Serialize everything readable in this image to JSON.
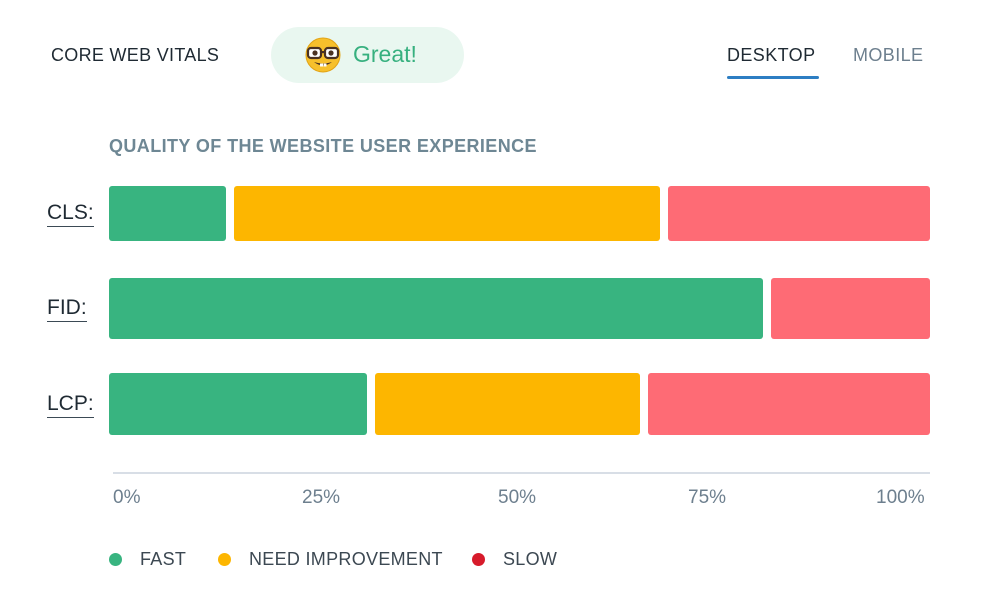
{
  "header": {
    "title": "CORE WEB VITALS",
    "badge": {
      "label": "Great!",
      "icon": "nerd-face-emoji"
    },
    "tabs": [
      {
        "label": "DESKTOP",
        "active": true
      },
      {
        "label": "MOBILE",
        "active": false
      }
    ]
  },
  "colors": {
    "fast": "#38b480",
    "need_improvement": "#fdb600",
    "slow": "#fe6b75",
    "slow_legend": "#d71b2b",
    "accent": "#2d7ec3"
  },
  "chart_data": {
    "type": "bar",
    "orientation": "horizontal",
    "stacked": true,
    "title": "QUALITY OF THE WEBSITE USER EXPERIENCE",
    "categories": [
      "CLS:",
      "FID:",
      "LCP:"
    ],
    "series": [
      {
        "name": "FAST",
        "values": [
          14.5,
          80.5,
          32
        ]
      },
      {
        "name": "NEED IMPROVEMENT",
        "values": [
          53,
          0,
          33
        ]
      },
      {
        "name": "SLOW",
        "values": [
          32.5,
          19.5,
          35
        ]
      }
    ],
    "xlim": [
      0,
      100
    ],
    "x_ticks": [
      "0%",
      "25%",
      "50%",
      "75%",
      "100%"
    ],
    "legend_position": "bottom-left",
    "grid": false
  }
}
